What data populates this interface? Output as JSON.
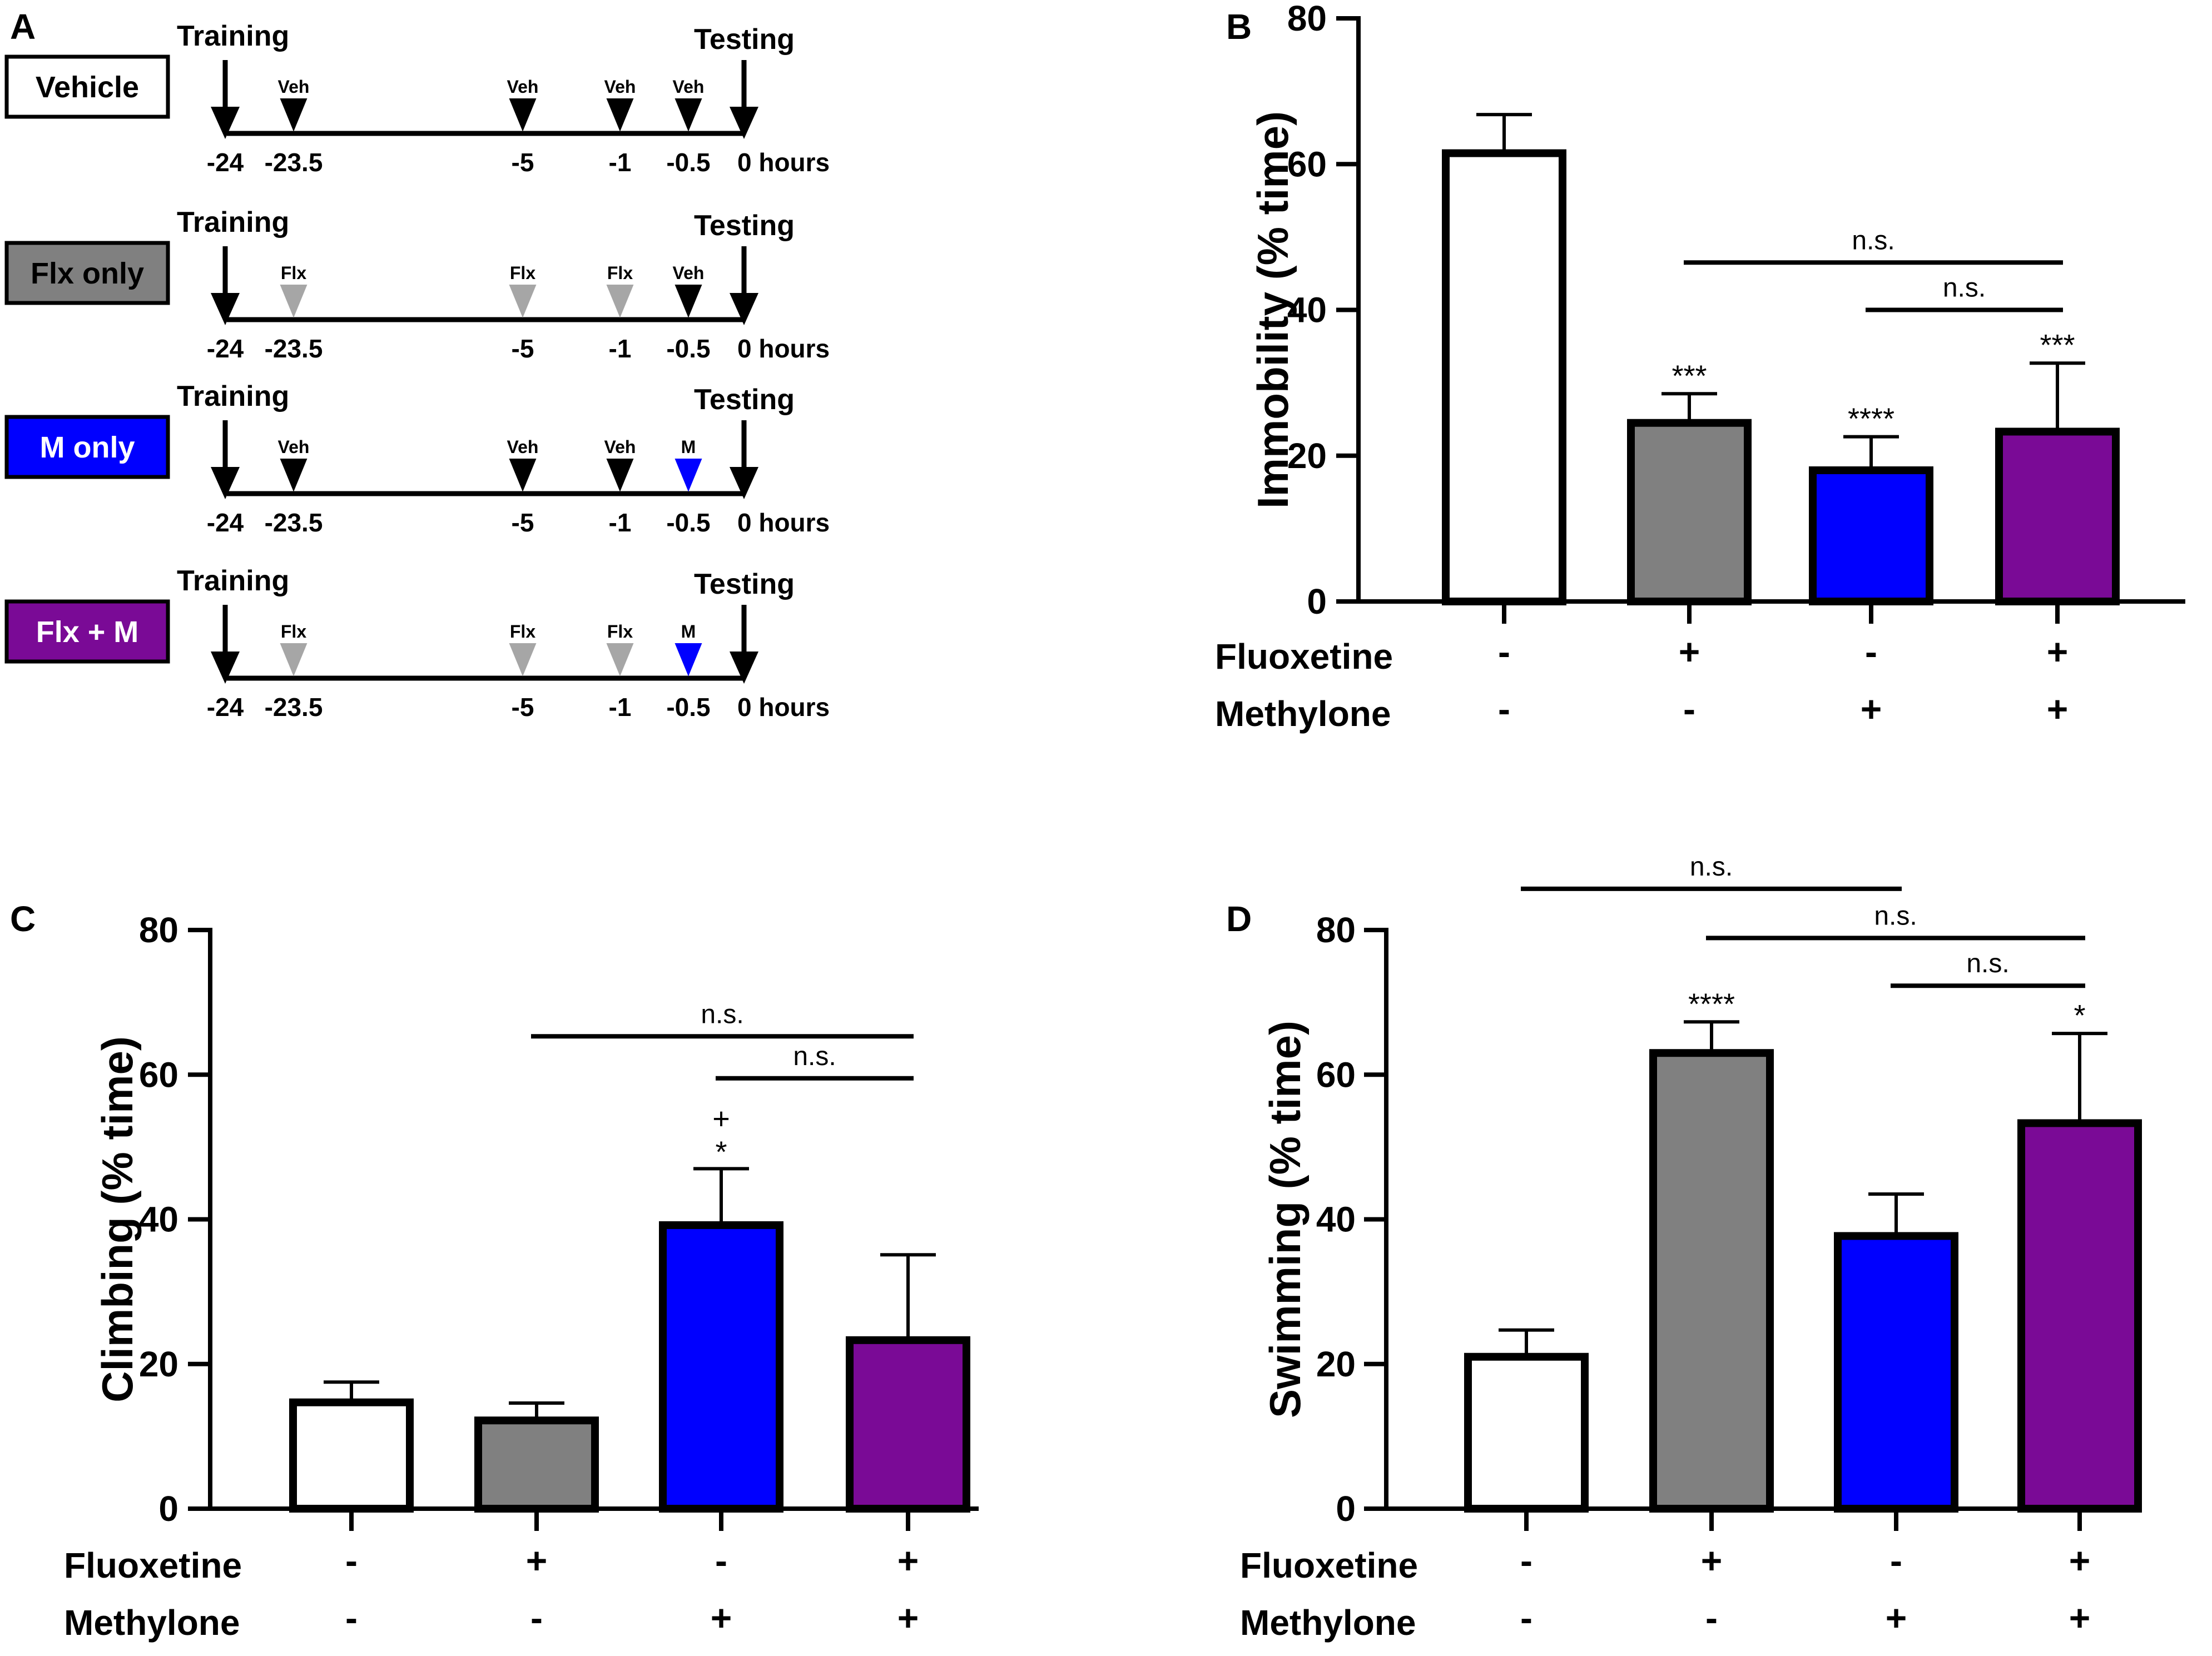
{
  "panels": {
    "A": {
      "label": "A",
      "event_training": "Training",
      "event_testing": "Testing",
      "time_labels": [
        "-24",
        "-23.5",
        "-5",
        "-1",
        "-0.5",
        "0 hours"
      ],
      "groups": [
        {
          "name": "Vehicle",
          "box_color": "#ffffff",
          "text_color": "#000000",
          "injections": [
            "Veh",
            "Veh",
            "Veh",
            "Veh"
          ],
          "colors": [
            "#000000",
            "#000000",
            "#000000",
            "#000000"
          ]
        },
        {
          "name": "Flx only",
          "box_color": "#808080",
          "text_color": "#000000",
          "injections": [
            "Flx",
            "Flx",
            "Flx",
            "Veh"
          ],
          "colors": [
            "#a6a6a6",
            "#a6a6a6",
            "#a6a6a6",
            "#000000"
          ]
        },
        {
          "name": "M only",
          "box_color": "#0000ff",
          "text_color": "#ffffff",
          "injections": [
            "Veh",
            "Veh",
            "Veh",
            "M"
          ],
          "colors": [
            "#000000",
            "#000000",
            "#000000",
            "#0000ff"
          ]
        },
        {
          "name": "Flx + M",
          "box_color": "#7a0a96",
          "text_color": "#ffffff",
          "injections": [
            "Flx",
            "Flx",
            "Flx",
            "M"
          ],
          "colors": [
            "#a6a6a6",
            "#a6a6a6",
            "#a6a6a6",
            "#0000ff"
          ]
        }
      ]
    },
    "B": {
      "label": "B"
    },
    "C": {
      "label": "C"
    },
    "D": {
      "label": "D"
    }
  },
  "colors": {
    "vehicle": "#ffffff",
    "fluoxetine": "#808080",
    "methylone": "#0000ff",
    "combo": "#7a0a96"
  },
  "chart_data": [
    {
      "panel": "B",
      "type": "bar",
      "ylabel": "Immobility (% time)",
      "ylim": [
        0,
        80
      ],
      "yticks": [
        "0",
        "20",
        "40",
        "60",
        "80"
      ],
      "categories": [
        "Vehicle",
        "Fluoxetine",
        "Methylone",
        "Fluoxetine + Methylone"
      ],
      "values": [
        61.5,
        24.5,
        18,
        23.3
      ],
      "errors": [
        5.3,
        4,
        4.6,
        9.4
      ],
      "bar_colors": [
        "#ffffff",
        "#808080",
        "#0000ff",
        "#7a0a96"
      ],
      "sig_top": [
        "",
        "***",
        "****",
        "***"
      ],
      "sig_bottom": [
        "",
        "",
        "",
        ""
      ],
      "condition_labels": [
        "Fluoxetine",
        "Methylone"
      ],
      "fluoxetine": [
        "-",
        "+",
        "-",
        "+"
      ],
      "methylone": [
        "-",
        "-",
        "+",
        "+"
      ],
      "ns_brackets": [
        {
          "from": 1,
          "to": 3,
          "label": "n.s.",
          "y": 46.5
        },
        {
          "from": 2,
          "to": 3,
          "label": "n.s.",
          "y": 40
        }
      ]
    },
    {
      "panel": "C",
      "type": "bar",
      "ylabel": "Climbing (% time)",
      "ylim": [
        0,
        80
      ],
      "yticks": [
        "0",
        "20",
        "40",
        "60",
        "80"
      ],
      "categories": [
        "Vehicle",
        "Fluoxetine",
        "Methylone",
        "Fluoxetine + Methylone"
      ],
      "values": [
        14.7,
        12.2,
        39.2,
        23.3
      ],
      "errors": [
        2.8,
        2.4,
        7.8,
        11.8
      ],
      "bar_colors": [
        "#ffffff",
        "#808080",
        "#0000ff",
        "#7a0a96"
      ],
      "sig_top": [
        "",
        "",
        "+",
        ""
      ],
      "sig_bottom": [
        "",
        "",
        "*",
        ""
      ],
      "condition_labels": [
        "Fluoxetine",
        "Methylone"
      ],
      "fluoxetine": [
        "-",
        "+",
        "-",
        "+"
      ],
      "methylone": [
        "-",
        "-",
        "+",
        "+"
      ],
      "ns_brackets": [
        {
          "from": 1,
          "to": 3,
          "label": "n.s.",
          "y": 65.3
        },
        {
          "from": 2,
          "to": 3,
          "label": "n.s.",
          "y": 59.5
        }
      ]
    },
    {
      "panel": "D",
      "type": "bar",
      "ylabel": "Swimming (% time)",
      "ylim": [
        0,
        80
      ],
      "yticks": [
        "0",
        "20",
        "40",
        "60",
        "80"
      ],
      "categories": [
        "Vehicle",
        "Fluoxetine",
        "Methylone",
        "Fluoxetine + Methylone"
      ],
      "values": [
        21,
        63,
        37.7,
        53.3
      ],
      "errors": [
        3.7,
        4.3,
        5.8,
        12.4
      ],
      "bar_colors": [
        "#ffffff",
        "#808080",
        "#0000ff",
        "#7a0a96"
      ],
      "sig_top": [
        "",
        "****",
        "",
        "*"
      ],
      "sig_bottom": [
        "",
        "",
        "",
        ""
      ],
      "condition_labels": [
        "Fluoxetine",
        "Methylone"
      ],
      "fluoxetine": [
        "-",
        "+",
        "-",
        "+"
      ],
      "methylone": [
        "-",
        "-",
        "+",
        "+"
      ],
      "ns_brackets": [
        {
          "from": 0,
          "to": 2,
          "label": "n.s.",
          "y": 85.7
        },
        {
          "from": 1,
          "to": 3,
          "label": "n.s.",
          "y": 78.9
        },
        {
          "from": 2,
          "to": 3,
          "label": "n.s.",
          "y": 72.3
        }
      ]
    }
  ]
}
